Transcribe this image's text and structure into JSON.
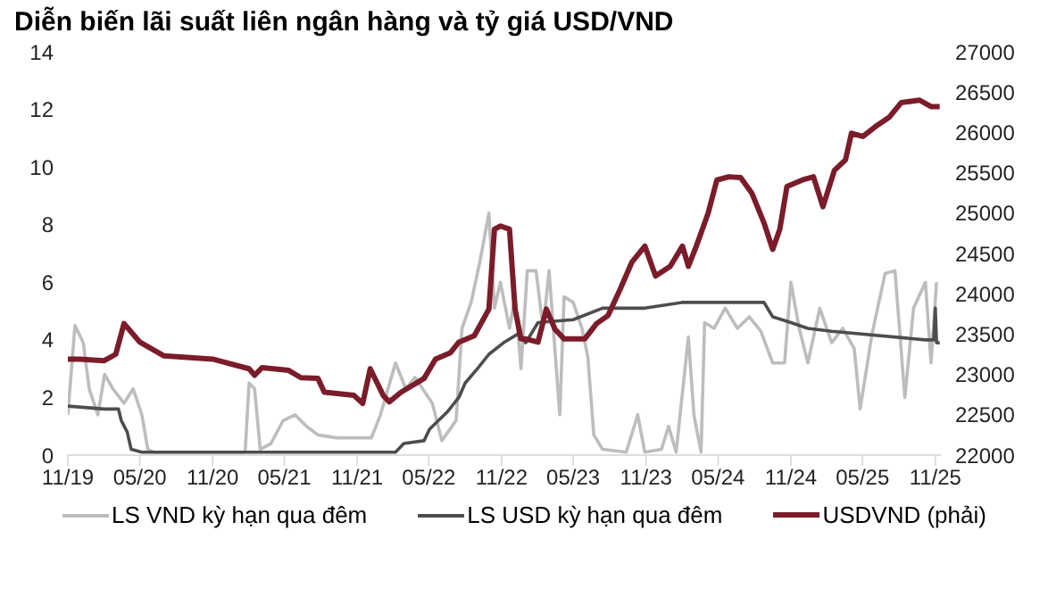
{
  "chart_data": {
    "type": "line",
    "title": "Diễn biến lãi suất liên ngân hàng và tỷ giá USD/VND",
    "marker": "none",
    "legend": "bottom",
    "xlim": [
      "2019-11-01",
      "2025-11-15"
    ],
    "xticks": [
      {
        "value": "2019-11-01",
        "label": "11/19"
      },
      {
        "value": "2020-05-01",
        "label": "05/20"
      },
      {
        "value": "2020-11-01",
        "label": "11/20"
      },
      {
        "value": "2021-05-01",
        "label": "05/21"
      },
      {
        "value": "2021-11-01",
        "label": "11/21"
      },
      {
        "value": "2022-05-01",
        "label": "05/22"
      },
      {
        "value": "2022-11-01",
        "label": "11/22"
      },
      {
        "value": "2023-05-01",
        "label": "05/23"
      },
      {
        "value": "2023-11-01",
        "label": "11/23"
      },
      {
        "value": "2024-05-01",
        "label": "05/24"
      },
      {
        "value": "2024-11-01",
        "label": "11/24"
      },
      {
        "value": "2025-05-01",
        "label": "05/25"
      },
      {
        "value": "2025-11-01",
        "label": "11/25"
      }
    ],
    "ylim": [
      0,
      14
    ],
    "yticks": [
      0,
      2,
      4,
      6,
      8,
      10,
      12,
      14
    ],
    "y2lim": [
      22000,
      27000
    ],
    "y2ticks": [
      22000,
      22500,
      23000,
      23500,
      24000,
      24500,
      25000,
      25500,
      26000,
      26500,
      27000
    ],
    "series": [
      {
        "name": "LS VND kỳ hạn qua đêm",
        "color": "#bdbdbd",
        "x": [
          "2019-11-01",
          "2019-11-19",
          "2019-12-10",
          "2019-12-25",
          "2020-01-16",
          "2020-02-02",
          "2020-02-23",
          "2020-03-22",
          "2020-04-14",
          "2020-05-06",
          "2020-05-21",
          "2020-06-05",
          "2021-01-22",
          "2021-02-01",
          "2021-02-15",
          "2021-03-01",
          "2021-03-28",
          "2021-04-28",
          "2021-05-28",
          "2021-06-26",
          "2021-07-25",
          "2021-09-09",
          "2021-10-24",
          "2021-12-07",
          "2021-12-30",
          "2022-02-06",
          "2022-03-04",
          "2022-03-27",
          "2022-05-10",
          "2022-06-03",
          "2022-07-09",
          "2022-07-24",
          "2022-08-16",
          "2022-09-07",
          "2022-09-30",
          "2022-10-14",
          "2022-10-29",
          "2022-11-21",
          "2022-12-05",
          "2022-12-20",
          "2023-01-05",
          "2023-01-27",
          "2023-02-14",
          "2023-03-01",
          "2023-03-28",
          "2023-04-08",
          "2023-05-01",
          "2023-05-23",
          "2023-06-07",
          "2023-06-22",
          "2023-07-14",
          "2023-09-12",
          "2023-10-11",
          "2023-10-29",
          "2023-12-10",
          "2023-12-28",
          "2024-01-16",
          "2024-02-16",
          "2024-03-01",
          "2024-03-19",
          "2024-03-28",
          "2024-04-21",
          "2024-05-19",
          "2024-06-19",
          "2024-07-19",
          "2024-08-17",
          "2024-09-16",
          "2024-10-16",
          "2024-11-01",
          "2024-11-22",
          "2024-12-14",
          "2025-01-13",
          "2025-02-12",
          "2025-03-12",
          "2025-04-10",
          "2025-04-25",
          "2025-05-25",
          "2025-06-27",
          "2025-07-22",
          "2025-08-16",
          "2025-09-07",
          "2025-10-07",
          "2025-10-21",
          "2025-11-04"
        ],
        "values": [
          1.4,
          4.5,
          3.9,
          2.3,
          1.4,
          2.8,
          2.3,
          1.8,
          2.3,
          1.4,
          0.2,
          0.1,
          0.1,
          2.5,
          2.3,
          0.2,
          0.4,
          1.2,
          1.4,
          1.0,
          0.7,
          0.6,
          0.6,
          0.6,
          1.4,
          3.2,
          2.3,
          2.7,
          1.8,
          0.5,
          1.2,
          4.4,
          5.3,
          6.7,
          8.4,
          5.1,
          6.0,
          4.4,
          5.5,
          3.0,
          6.4,
          6.4,
          4.4,
          6.4,
          1.4,
          5.5,
          5.3,
          4.4,
          3.4,
          0.7,
          0.2,
          0.1,
          1.4,
          0.1,
          0.2,
          1.0,
          0.1,
          4.1,
          1.4,
          0.1,
          4.6,
          4.4,
          5.1,
          4.4,
          4.8,
          4.3,
          3.2,
          3.2,
          6.0,
          4.4,
          3.2,
          5.1,
          3.9,
          4.4,
          3.7,
          1.6,
          4.2,
          6.3,
          6.4,
          2.0,
          5.1,
          6.0,
          3.2,
          6.0
        ]
      },
      {
        "name": "LS USD kỳ hạn qua đêm",
        "color": "#4d4d4d",
        "x": [
          "2019-11-01",
          "2020-02-01",
          "2020-03-08",
          "2020-03-15",
          "2020-03-30",
          "2020-04-09",
          "2020-05-06",
          "2022-02-06",
          "2022-02-27",
          "2022-04-19",
          "2022-05-03",
          "2022-06-17",
          "2022-07-16",
          "2022-08-01",
          "2022-09-01",
          "2022-09-30",
          "2022-11-06",
          "2022-12-12",
          "2023-01-01",
          "2023-02-01",
          "2023-05-01",
          "2023-07-14",
          "2023-10-29",
          "2024-02-01",
          "2024-08-25",
          "2024-09-16",
          "2024-11-01",
          "2024-12-14",
          "2025-02-12",
          "2025-10-07",
          "2025-10-28",
          "2025-11-01",
          "2025-11-04",
          "2025-11-12"
        ],
        "values": [
          1.7,
          1.6,
          1.6,
          1.2,
          0.8,
          0.2,
          0.1,
          0.1,
          0.4,
          0.5,
          0.9,
          1.5,
          2.0,
          2.5,
          3.0,
          3.5,
          3.9,
          4.2,
          3.9,
          4.6,
          4.7,
          5.1,
          5.1,
          5.3,
          5.3,
          4.8,
          4.6,
          4.4,
          4.3,
          4.0,
          4.0,
          5.1,
          3.9,
          3.9
        ]
      },
      {
        "name": "USDVND (phải)",
        "color": "#7b1c2a",
        "axis": "y2",
        "x": [
          "2019-11-01",
          "2019-12-01",
          "2020-02-01",
          "2020-03-01",
          "2020-03-22",
          "2020-05-01",
          "2020-07-01",
          "2020-11-01",
          "2021-02-01",
          "2021-02-15",
          "2021-03-06",
          "2021-05-12",
          "2021-06-12",
          "2021-07-25",
          "2021-08-10",
          "2021-10-24",
          "2021-11-15",
          "2021-12-04",
          "2022-01-06",
          "2022-01-21",
          "2022-02-20",
          "2022-04-19",
          "2022-05-18",
          "2022-06-25",
          "2022-07-16",
          "2022-08-24",
          "2022-09-30",
          "2022-10-14",
          "2022-10-29",
          "2022-11-21",
          "2022-12-05",
          "2022-12-20",
          "2023-01-01",
          "2023-02-01",
          "2023-02-22",
          "2023-03-16",
          "2023-04-08",
          "2023-05-30",
          "2023-06-29",
          "2023-07-28",
          "2023-08-28",
          "2023-09-26",
          "2023-10-29",
          "2023-11-25",
          "2024-01-01",
          "2024-02-01",
          "2024-02-16",
          "2024-03-07",
          "2024-04-06",
          "2024-04-28",
          "2024-05-28",
          "2024-06-27",
          "2024-07-25",
          "2024-08-25",
          "2024-09-16",
          "2024-10-04",
          "2024-10-22",
          "2024-11-30",
          "2024-12-28",
          "2025-01-21",
          "2025-02-19",
          "2025-03-19",
          "2025-04-03",
          "2025-05-02",
          "2025-06-02",
          "2025-07-08",
          "2025-08-07",
          "2025-09-22",
          "2025-10-21",
          "2025-11-12"
        ],
        "values": [
          23190,
          23190,
          23170,
          23250,
          23630,
          23400,
          23230,
          23190,
          23070,
          22990,
          23085,
          23050,
          22960,
          22950,
          22780,
          22740,
          22640,
          23070,
          22740,
          22660,
          22780,
          22950,
          23190,
          23270,
          23400,
          23480,
          23810,
          24800,
          24840,
          24800,
          23810,
          23440,
          23440,
          23400,
          23810,
          23560,
          23440,
          23440,
          23630,
          23730,
          24060,
          24390,
          24590,
          24220,
          24340,
          24590,
          24340,
          24590,
          25000,
          25410,
          25450,
          25440,
          25250,
          24880,
          24550,
          24800,
          25330,
          25410,
          25450,
          25080,
          25530,
          25660,
          25990,
          25950,
          26070,
          26190,
          26370,
          26400,
          26320,
          26320
        ]
      }
    ]
  }
}
